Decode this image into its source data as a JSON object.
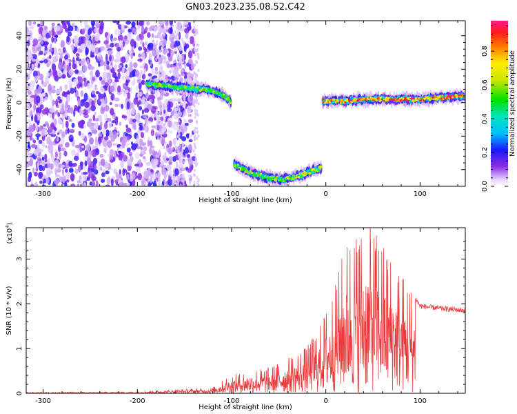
{
  "title": "GN03.2023.235.08.52.C42",
  "chart_data": [
    {
      "type": "heatmap",
      "title": "GN03.2023.235.08.52.C42",
      "xlabel": "Height of straight line (km)",
      "ylabel": "Frequency (Hz)",
      "xlim": [
        -318,
        148
      ],
      "ylim": [
        -50,
        49
      ],
      "xticks": [
        "-300",
        "-200",
        "-100",
        "0",
        "100"
      ],
      "yticks": [
        "-40",
        "-20",
        "0",
        "20",
        "40"
      ],
      "colorbar": {
        "label": "Normalized spectral amplitude",
        "ticks": [
          "0.0",
          "0.2",
          "0.4",
          "0.6",
          "0.8"
        ],
        "range": [
          0,
          0.98
        ]
      },
      "tracks": [
        {
          "x": [
            -190,
            -170,
            -150,
            -130,
            -115,
            -105,
            -100
          ],
          "y": [
            11,
            10,
            9,
            8,
            6,
            3,
            0
          ],
          "amplitude": 0.55
        },
        {
          "x": [
            -97,
            -80,
            -60,
            -45,
            -30,
            -15,
            -5
          ],
          "y": [
            -37,
            -42,
            -45,
            -46,
            -44,
            -41,
            -39
          ],
          "amplitude": 0.6
        },
        {
          "x": [
            -3,
            20,
            40,
            60,
            80,
            100,
            120,
            148
          ],
          "y": [
            1,
            1,
            2,
            2,
            2,
            2,
            3,
            4
          ],
          "amplitude": 0.85
        }
      ],
      "noise_region": {
        "x": [
          -318,
          -140
        ],
        "y": [
          -50,
          49
        ]
      }
    },
    {
      "type": "line",
      "xlabel": "Height of straight line (km)",
      "ylabel": "SNR (10 * v/v)",
      "multiplier_label": "(x10",
      "multiplier_exp": "4",
      "xlim": [
        -318,
        148
      ],
      "ylim": [
        0,
        3.7
      ],
      "xticks": [
        "-300",
        "-200",
        "-100",
        "0",
        "100"
      ],
      "yticks": [
        "0",
        "1",
        "2",
        "3"
      ],
      "series": [
        {
          "color": "#e83a3a",
          "envelope": {
            "x": [
              -318,
              -200,
              -160,
              -120,
              -105,
              -80,
              -60,
              -40,
              -20,
              -5,
              10,
              20,
              35,
              45,
              55,
              70,
              90,
              100,
              120,
              148
            ],
            "y": [
              0.02,
              0.03,
              0.08,
              0.12,
              0.35,
              0.5,
              0.55,
              0.75,
              1.0,
              1.5,
              2.3,
              3.2,
              3.5,
              3.6,
              3.4,
              2.9,
              2.3,
              1.95,
              1.9,
              1.85
            ]
          }
        }
      ]
    }
  ]
}
